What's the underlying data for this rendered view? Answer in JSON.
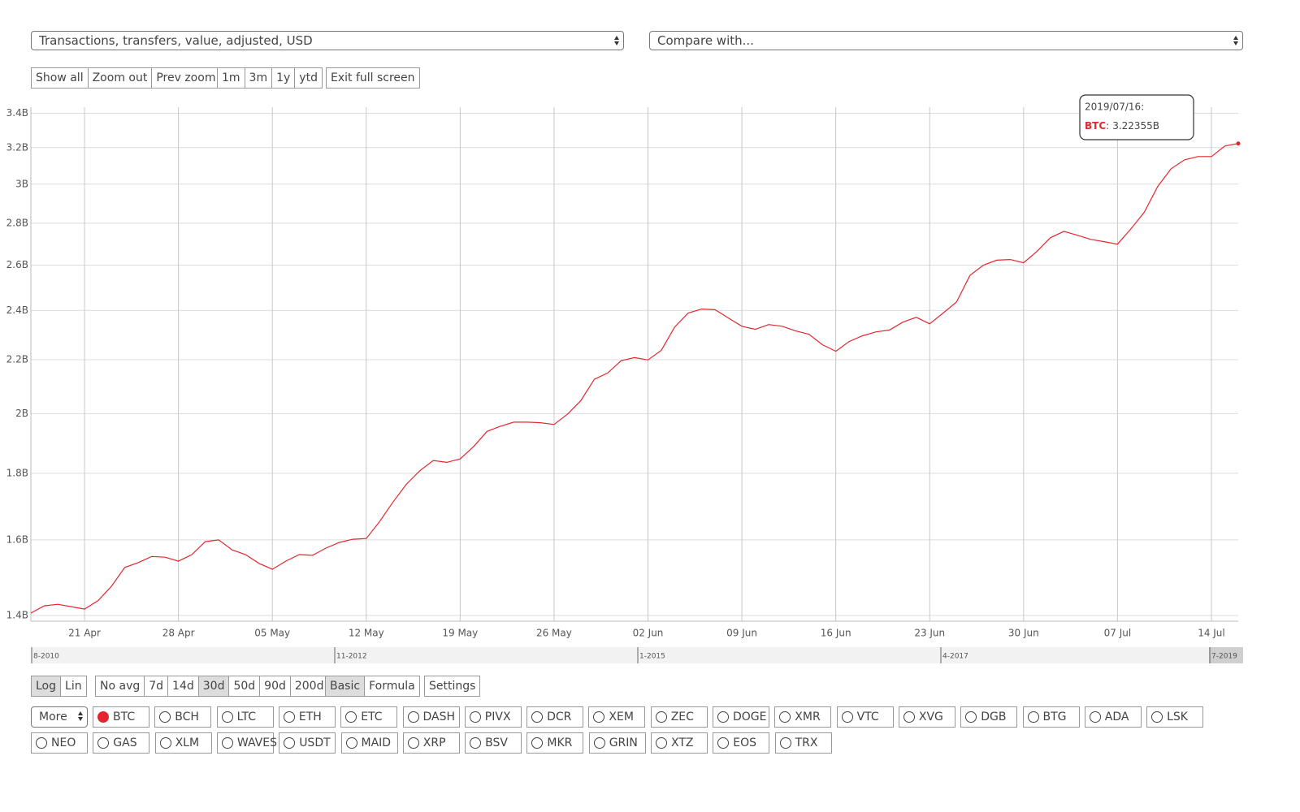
{
  "selects": {
    "metric": "Transactions, transfers, value, adjusted, USD",
    "compare": "Compare with..."
  },
  "zoom_buttons": [
    "Show all",
    "Zoom out",
    "Prev zoom"
  ],
  "range_buttons": [
    "1m",
    "3m",
    "1y",
    "ytd"
  ],
  "fullscreen_button": "Exit full screen",
  "scale_buttons": [
    "Log",
    "Lin"
  ],
  "scale_active": 0,
  "avg_buttons": [
    "No avg",
    "7d",
    "14d",
    "30d",
    "50d",
    "90d",
    "200d"
  ],
  "avg_active": 3,
  "mode_buttons": [
    "Basic",
    "Formula"
  ],
  "mode_active": 0,
  "settings_button": "Settings",
  "more_select": "More",
  "assets": [
    [
      "BTC",
      "BCH",
      "LTC",
      "ETH",
      "ETC",
      "DASH",
      "PIVX",
      "DCR",
      "XEM",
      "ZEC",
      "DOGE",
      "XMR",
      "VTC",
      "XVG",
      "DGB",
      "BTG",
      "ADA",
      "LSK"
    ],
    [
      "NEO",
      "GAS",
      "XLM",
      "WAVES",
      "USDT",
      "MAID",
      "XRP",
      "BSV",
      "MKR",
      "GRIN",
      "XTZ",
      "EOS",
      "TRX"
    ]
  ],
  "asset_selected": [
    0,
    0
  ],
  "navigator": [
    "8-2010",
    "11-2012",
    "1-2015",
    "4-2017",
    "7-2019"
  ],
  "chart_data": {
    "type": "line",
    "log_y": true,
    "grid": true,
    "x": [
      "2019-04-17",
      "2019-04-18",
      "2019-04-19",
      "2019-04-20",
      "2019-04-21",
      "2019-04-22",
      "2019-04-23",
      "2019-04-24",
      "2019-04-25",
      "2019-04-26",
      "2019-04-27",
      "2019-04-28",
      "2019-04-29",
      "2019-04-30",
      "2019-05-01",
      "2019-05-02",
      "2019-05-03",
      "2019-05-04",
      "2019-05-05",
      "2019-05-06",
      "2019-05-07",
      "2019-05-08",
      "2019-05-09",
      "2019-05-10",
      "2019-05-11",
      "2019-05-12",
      "2019-05-13",
      "2019-05-14",
      "2019-05-15",
      "2019-05-16",
      "2019-05-17",
      "2019-05-18",
      "2019-05-19",
      "2019-05-20",
      "2019-05-21",
      "2019-05-22",
      "2019-05-23",
      "2019-05-24",
      "2019-05-25",
      "2019-05-26",
      "2019-05-27",
      "2019-05-28",
      "2019-05-29",
      "2019-05-30",
      "2019-05-31",
      "2019-06-01",
      "2019-06-02",
      "2019-06-03",
      "2019-06-04",
      "2019-06-05",
      "2019-06-06",
      "2019-06-07",
      "2019-06-08",
      "2019-06-09",
      "2019-06-10",
      "2019-06-11",
      "2019-06-12",
      "2019-06-13",
      "2019-06-14",
      "2019-06-15",
      "2019-06-16",
      "2019-06-17",
      "2019-06-18",
      "2019-06-19",
      "2019-06-20",
      "2019-06-21",
      "2019-06-22",
      "2019-06-23",
      "2019-06-24",
      "2019-06-25",
      "2019-06-26",
      "2019-06-27",
      "2019-06-28",
      "2019-06-29",
      "2019-06-30",
      "2019-07-01",
      "2019-07-02",
      "2019-07-03",
      "2019-07-04",
      "2019-07-05",
      "2019-07-06",
      "2019-07-07",
      "2019-07-08",
      "2019-07-09",
      "2019-07-10",
      "2019-07-11",
      "2019-07-12",
      "2019-07-13",
      "2019-07-14",
      "2019-07-15",
      "2019-07-16"
    ],
    "series": [
      {
        "name": "BTC",
        "color": "#e3262e",
        "values": [
          1.406,
          1.424,
          1.428,
          1.422,
          1.416,
          1.437,
          1.474,
          1.524,
          1.537,
          1.554,
          1.552,
          1.541,
          1.559,
          1.595,
          1.6,
          1.572,
          1.559,
          1.535,
          1.519,
          1.541,
          1.559,
          1.557,
          1.577,
          1.593,
          1.602,
          1.604,
          1.653,
          1.711,
          1.766,
          1.808,
          1.841,
          1.835,
          1.846,
          1.887,
          1.938,
          1.956,
          1.97,
          1.97,
          1.968,
          1.962,
          1.998,
          2.047,
          2.125,
          2.149,
          2.196,
          2.208,
          2.199,
          2.237,
          2.331,
          2.389,
          2.406,
          2.403,
          2.368,
          2.334,
          2.321,
          2.341,
          2.334,
          2.315,
          2.301,
          2.259,
          2.233,
          2.272,
          2.295,
          2.311,
          2.318,
          2.351,
          2.371,
          2.344,
          2.389,
          2.436,
          2.553,
          2.6,
          2.623,
          2.626,
          2.611,
          2.664,
          2.729,
          2.76,
          2.741,
          2.721,
          2.71,
          2.698,
          2.772,
          2.855,
          2.988,
          3.083,
          3.132,
          3.15,
          3.15,
          3.209,
          3.22355
        ]
      }
    ],
    "xlim": [
      "2019-04-17",
      "2019-07-16"
    ],
    "xticks": [
      {
        "value": "2019-04-21",
        "label": "21 Apr"
      },
      {
        "value": "2019-04-28",
        "label": "28 Apr"
      },
      {
        "value": "2019-05-05",
        "label": "05 May"
      },
      {
        "value": "2019-05-12",
        "label": "12 May"
      },
      {
        "value": "2019-05-19",
        "label": "19 May"
      },
      {
        "value": "2019-05-26",
        "label": "26 May"
      },
      {
        "value": "2019-06-02",
        "label": "02 Jun"
      },
      {
        "value": "2019-06-09",
        "label": "09 Jun"
      },
      {
        "value": "2019-06-16",
        "label": "16 Jun"
      },
      {
        "value": "2019-06-23",
        "label": "23 Jun"
      },
      {
        "value": "2019-06-30",
        "label": "30 Jun"
      },
      {
        "value": "2019-07-07",
        "label": "07 Jul"
      },
      {
        "value": "2019-07-14",
        "label": "14 Jul"
      }
    ],
    "ylim": [
      1.386,
      3.437
    ],
    "yticks": [
      {
        "value": 1.4,
        "label": "1.4B"
      },
      {
        "value": 1.6,
        "label": "1.6B"
      },
      {
        "value": 1.8,
        "label": "1.8B"
      },
      {
        "value": 2,
        "label": "2B"
      },
      {
        "value": 2.2,
        "label": "2.2B"
      },
      {
        "value": 2.4,
        "label": "2.4B"
      },
      {
        "value": 2.6,
        "label": "2.6B"
      },
      {
        "value": 2.8,
        "label": "2.8B"
      },
      {
        "value": 3,
        "label": "3B"
      },
      {
        "value": 3.2,
        "label": "3.2B"
      },
      {
        "value": 3.4,
        "label": "3.4B"
      }
    ],
    "tooltip": {
      "date": "2019/07/16:",
      "separator": ":",
      "value_label": "3.22355B"
    }
  }
}
